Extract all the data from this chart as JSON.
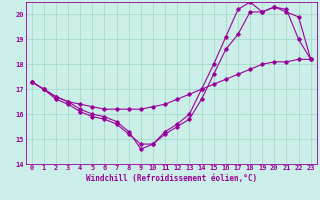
{
  "xlabel": "Windchill (Refroidissement éolien,°C)",
  "background_color": "#cceee8",
  "grid_color": "#aaddcc",
  "line_color": "#990099",
  "x": [
    0,
    1,
    2,
    3,
    4,
    5,
    6,
    7,
    8,
    9,
    10,
    11,
    12,
    13,
    14,
    15,
    16,
    17,
    18,
    19,
    20,
    21,
    22,
    23
  ],
  "line1": [
    17.3,
    17.0,
    16.6,
    16.4,
    16.1,
    15.9,
    15.8,
    15.6,
    15.2,
    14.8,
    14.8,
    15.2,
    15.5,
    15.8,
    16.6,
    17.6,
    18.6,
    19.2,
    20.1,
    20.1,
    20.3,
    20.2,
    19.0,
    18.2
  ],
  "line2": [
    17.3,
    17.0,
    16.7,
    16.5,
    16.2,
    16.0,
    15.9,
    15.7,
    15.3,
    14.6,
    14.8,
    15.3,
    15.6,
    16.0,
    17.0,
    18.0,
    19.1,
    20.2,
    20.5,
    20.1,
    20.3,
    20.1,
    19.9,
    18.2
  ],
  "line3": [
    17.3,
    17.0,
    16.7,
    16.5,
    16.4,
    16.3,
    16.2,
    16.2,
    16.2,
    16.2,
    16.3,
    16.4,
    16.6,
    16.8,
    17.0,
    17.2,
    17.4,
    17.6,
    17.8,
    18.0,
    18.1,
    18.1,
    18.2,
    18.2
  ],
  "ylim": [
    14,
    20.5
  ],
  "yticks": [
    14,
    15,
    16,
    17,
    18,
    19,
    20
  ],
  "xlim": [
    -0.5,
    23.5
  ],
  "xticks": [
    0,
    1,
    2,
    3,
    4,
    5,
    6,
    7,
    8,
    9,
    10,
    11,
    12,
    13,
    14,
    15,
    16,
    17,
    18,
    19,
    20,
    21,
    22,
    23
  ]
}
